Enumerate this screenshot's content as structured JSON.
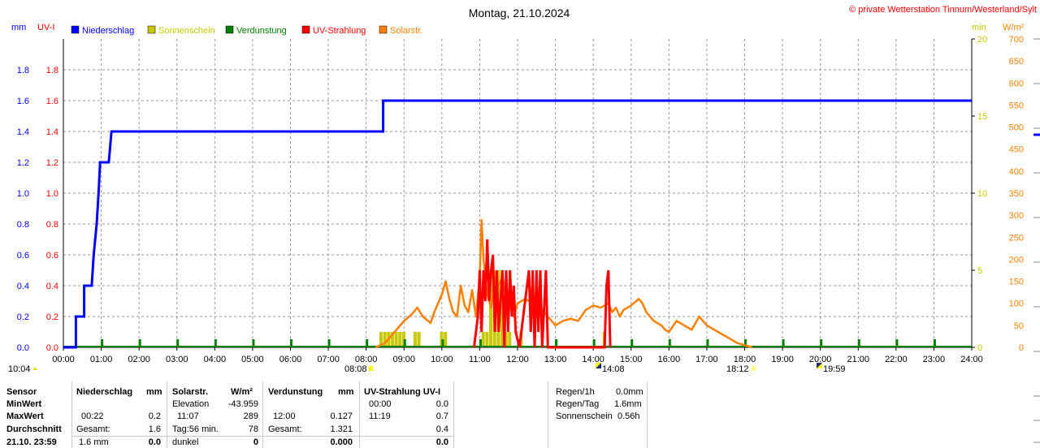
{
  "header": {
    "title": "Montag, 21.10.2024",
    "copyright": "© private Wetterstation Tinnum/Westerland/Sylt",
    "unit_mm": "mm",
    "unit_uvi": "UV-I",
    "unit_min": "min",
    "unit_wm2": "W/m²"
  },
  "legend": [
    {
      "label": "Niederschlag",
      "color": "#0000ff"
    },
    {
      "label": "Sonnenschein",
      "color": "#c8c800"
    },
    {
      "label": "Verdunstung",
      "color": "#008000"
    },
    {
      "label": "UV-Strahlung",
      "color": "#ff0000"
    },
    {
      "label": "Solarstr.",
      "color": "#ff8000"
    }
  ],
  "events": {
    "min_temp_time": "10:04",
    "sunrise": "08:08",
    "solar_noon": "14:08",
    "sunset": "18:12",
    "moon": "19:59"
  },
  "chart_data": {
    "type": "line",
    "title": "Montag, 21.10.2024",
    "x_ticks": [
      "00:00",
      "01:00",
      "02:00",
      "03:00",
      "04:00",
      "05:00",
      "06:00",
      "07:00",
      "08:00",
      "09:00",
      "10:00",
      "11:00",
      "12:00",
      "13:00",
      "14:00",
      "15:00",
      "16:00",
      "17:00",
      "18:00",
      "19:00",
      "20:00",
      "21:00",
      "22:00",
      "23:00",
      "24:00"
    ],
    "xlim": [
      0,
      24
    ],
    "axes": {
      "left_mm": {
        "ylim": [
          0,
          2.0
        ],
        "ticks": [
          "0.0",
          "0.2",
          "0.4",
          "0.6",
          "0.8",
          "1.0",
          "1.2",
          "1.4",
          "1.6",
          "1.8"
        ],
        "color": "#0000ff"
      },
      "left_uvi": {
        "ylim": [
          0,
          2.0
        ],
        "ticks": [
          "0.0",
          "0.2",
          "0.4",
          "0.6",
          "0.8",
          "1.0",
          "1.2",
          "1.4",
          "1.6",
          "1.8"
        ],
        "color": "#ff0000"
      },
      "right_min": {
        "ylim": [
          0,
          20
        ],
        "ticks": [
          "0",
          "5",
          "10",
          "15",
          "20"
        ],
        "color": "#c8c800"
      },
      "right_wm2": {
        "ylim": [
          0,
          700
        ],
        "ticks": [
          "0",
          "50",
          "100",
          "150",
          "200",
          "250",
          "300",
          "350",
          "400",
          "450",
          "500",
          "550",
          "600",
          "650",
          "700"
        ],
        "color": "#ff8000"
      }
    },
    "grid": true,
    "series": [
      {
        "name": "Niederschlag",
        "axis": "left_mm",
        "color": "#0000ff",
        "points": [
          [
            0,
            0
          ],
          [
            0.33,
            0
          ],
          [
            0.33,
            0.2
          ],
          [
            0.55,
            0.2
          ],
          [
            0.55,
            0.4
          ],
          [
            0.75,
            0.4
          ],
          [
            0.8,
            0.6
          ],
          [
            0.88,
            0.8
          ],
          [
            0.93,
            1.0
          ],
          [
            0.97,
            1.2
          ],
          [
            1.2,
            1.2
          ],
          [
            1.27,
            1.4
          ],
          [
            8.45,
            1.4
          ],
          [
            8.45,
            1.6
          ],
          [
            24,
            1.6
          ]
        ]
      },
      {
        "name": "Verdunstung",
        "axis": "left_mm",
        "color": "#008000",
        "points": [
          [
            0,
            0
          ],
          [
            24,
            0
          ]
        ],
        "ticks": [
          1,
          2,
          3,
          4,
          5,
          6,
          7,
          8,
          9,
          10,
          11,
          12,
          13,
          14,
          15,
          16,
          17,
          18,
          19,
          20,
          21,
          22,
          23
        ]
      },
      {
        "name": "Sonnenschein",
        "axis": "right_min",
        "color": "#c8c800",
        "bars": [
          [
            8.35,
            1
          ],
          [
            8.45,
            1
          ],
          [
            8.55,
            1
          ],
          [
            8.65,
            1
          ],
          [
            8.75,
            1
          ],
          [
            8.85,
            1
          ],
          [
            8.95,
            1
          ],
          [
            9.25,
            1
          ],
          [
            9.35,
            1
          ],
          [
            9.95,
            1
          ],
          [
            10.05,
            1
          ],
          [
            11.05,
            1
          ],
          [
            11.15,
            1
          ],
          [
            11.25,
            5
          ],
          [
            11.35,
            5
          ],
          [
            11.45,
            5
          ],
          [
            11.55,
            5
          ],
          [
            11.65,
            1
          ],
          [
            11.75,
            1
          ],
          [
            12.05,
            1
          ],
          [
            14.25,
            1
          ]
        ]
      },
      {
        "name": "UV-Strahlung",
        "axis": "left_uvi",
        "color": "#ff0000",
        "points": [
          [
            10.85,
            0
          ],
          [
            10.9,
            0.1
          ],
          [
            10.95,
            0.2
          ],
          [
            11.0,
            0.5
          ],
          [
            11.05,
            0.1
          ],
          [
            11.1,
            0.5
          ],
          [
            11.15,
            0.3
          ],
          [
            11.2,
            0.7
          ],
          [
            11.25,
            0.3
          ],
          [
            11.3,
            0.5
          ],
          [
            11.35,
            0.6
          ],
          [
            11.4,
            0.1
          ],
          [
            11.45,
            0.5
          ],
          [
            11.5,
            0.1
          ],
          [
            11.55,
            0.3
          ],
          [
            11.6,
            0.5
          ],
          [
            11.65,
            0.0
          ],
          [
            11.7,
            0.5
          ],
          [
            11.75,
            0.1
          ],
          [
            11.8,
            0.5
          ],
          [
            11.85,
            0.2
          ],
          [
            11.9,
            0.4
          ],
          [
            11.95,
            0.1
          ],
          [
            12.05,
            0.0
          ],
          [
            12.3,
            0.5
          ],
          [
            12.35,
            0.1
          ],
          [
            12.4,
            0.5
          ],
          [
            12.45,
            0.0
          ],
          [
            12.5,
            0.5
          ],
          [
            12.55,
            0.1
          ],
          [
            12.6,
            0.5
          ],
          [
            12.65,
            0.0
          ],
          [
            12.75,
            0.5
          ],
          [
            12.8,
            0.0
          ],
          [
            13.2,
            0.0
          ],
          [
            14.3,
            0.0
          ],
          [
            14.35,
            0.4
          ],
          [
            14.4,
            0.5
          ],
          [
            14.45,
            0.0
          ]
        ]
      },
      {
        "name": "Solarstr.",
        "axis": "right_wm2",
        "color": "#ff8000",
        "points": [
          [
            8.25,
            0
          ],
          [
            8.5,
            10
          ],
          [
            8.8,
            40
          ],
          [
            9.0,
            60
          ],
          [
            9.2,
            75
          ],
          [
            9.35,
            90
          ],
          [
            9.5,
            70
          ],
          [
            9.7,
            55
          ],
          [
            9.8,
            80
          ],
          [
            10.0,
            120
          ],
          [
            10.1,
            150
          ],
          [
            10.2,
            110
          ],
          [
            10.3,
            80
          ],
          [
            10.4,
            70
          ],
          [
            10.5,
            140
          ],
          [
            10.6,
            95
          ],
          [
            10.7,
            80
          ],
          [
            10.8,
            130
          ],
          [
            10.9,
            70
          ],
          [
            11.0,
            160
          ],
          [
            11.05,
            289
          ],
          [
            11.1,
            200
          ],
          [
            11.2,
            120
          ],
          [
            11.3,
            90
          ],
          [
            11.4,
            160
          ],
          [
            11.5,
            140
          ],
          [
            11.6,
            160
          ],
          [
            11.7,
            120
          ],
          [
            11.8,
            90
          ],
          [
            11.9,
            70
          ],
          [
            12.0,
            100
          ],
          [
            12.2,
            110
          ],
          [
            12.4,
            100
          ],
          [
            12.6,
            90
          ],
          [
            12.8,
            70
          ],
          [
            13.0,
            50
          ],
          [
            13.2,
            60
          ],
          [
            13.4,
            65
          ],
          [
            13.6,
            60
          ],
          [
            13.8,
            85
          ],
          [
            14.0,
            95
          ],
          [
            14.2,
            90
          ],
          [
            14.4,
            100
          ],
          [
            14.5,
            80
          ],
          [
            14.6,
            90
          ],
          [
            14.7,
            70
          ],
          [
            14.8,
            85
          ],
          [
            15.0,
            95
          ],
          [
            15.2,
            110
          ],
          [
            15.3,
            100
          ],
          [
            15.4,
            80
          ],
          [
            15.6,
            60
          ],
          [
            15.8,
            50
          ],
          [
            15.9,
            40
          ],
          [
            16.0,
            35
          ],
          [
            16.2,
            60
          ],
          [
            16.3,
            55
          ],
          [
            16.5,
            45
          ],
          [
            16.6,
            40
          ],
          [
            16.8,
            70
          ],
          [
            17.0,
            50
          ],
          [
            17.2,
            40
          ],
          [
            17.4,
            30
          ],
          [
            17.6,
            20
          ],
          [
            17.8,
            10
          ],
          [
            18.0,
            5
          ],
          [
            18.2,
            0
          ]
        ]
      }
    ]
  },
  "stats": {
    "label_col": [
      "Sensor",
      "MinWert",
      "MaxWert",
      "Durchschnitt",
      "21.10. 23:59"
    ],
    "niederschlag": {
      "header": "Niederschlag",
      "unit": "mm",
      "max_time": "00:22",
      "max_val": "0.2",
      "gesamt_label": "Gesamt:",
      "gesamt_val": "1.6",
      "now_val": "1.6 mm",
      "now_total": "0.0"
    },
    "solar": {
      "header": "Solarstr.",
      "unit": "W/m²",
      "elev_label": "Elevation",
      "elev_val": "-43.959",
      "max_time": "11:07",
      "max_val": "289",
      "tag_label": "Tag:56 min.",
      "tag_val": "78",
      "dunkel_label": "dunkel",
      "dunkel_val": "0"
    },
    "verdunstung": {
      "header": "Verdunstung",
      "unit": "mm",
      "max_time": "12:00",
      "max_val": "0.127",
      "gesamt_label": "Gesamt:",
      "gesamt_val": "1.321",
      "now_val": "0.000"
    },
    "uv": {
      "header": "UV-Strahlung UV-I",
      "min_time": "00:00",
      "min_val": "0.0",
      "max_time": "11:19",
      "max_val": "0.7",
      "avg_val": "0.4",
      "now_val": "0.0"
    },
    "extra": [
      {
        "label": "Regen/1h",
        "value": "0.0mm"
      },
      {
        "label": "Regen/Tag",
        "value": "1.6mm"
      },
      {
        "label": "Sonnenschein",
        "value": "0.56h"
      }
    ]
  }
}
